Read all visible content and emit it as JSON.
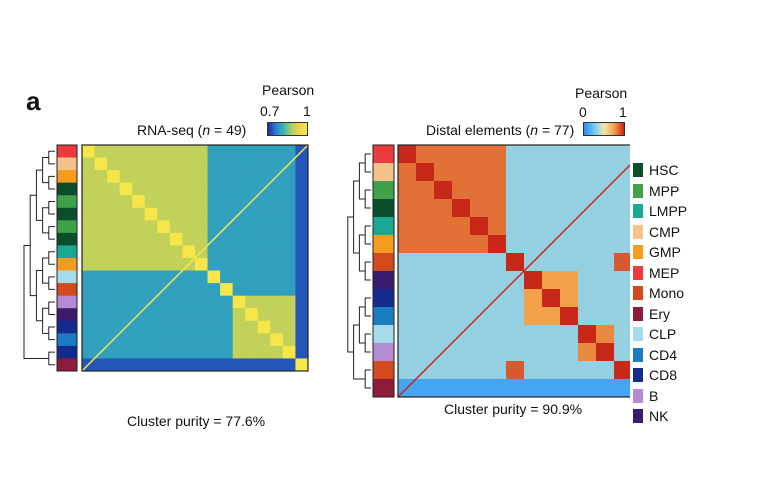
{
  "panel_label": "a",
  "chart_data": [
    {
      "type": "heatmap",
      "title_prefix": "RNA-seq (",
      "title_var": "n",
      "title_suffix": " = 49)",
      "colorbar": {
        "label": "Pearson",
        "min_label": "0.7",
        "max_label": "1",
        "min": 0.7,
        "max": 1
      },
      "footer": "Cluster purity = 77.6%",
      "n_samples": 49,
      "row_annotation": [
        "MEP",
        "CMP",
        "GMP",
        "HSC",
        "MPP",
        "HSC",
        "MPP",
        "HSC",
        "LMPP",
        "GMP",
        "CLP",
        "Mono",
        "B",
        "NK",
        "CD8",
        "CD4",
        "CD8",
        "Ery"
      ],
      "blocks": [
        {
          "cells": [
            "HSC",
            "MPP",
            "LMPP",
            "CMP",
            "GMP",
            "MEP"
          ],
          "value": 0.9
        },
        {
          "cells": [
            "CD4",
            "CD8",
            "NK",
            "B"
          ],
          "value": 0.9
        },
        {
          "cells": [
            "CLP"
          ],
          "value": 0.86
        },
        {
          "cells": [
            "Mono"
          ],
          "value": 0.95
        },
        {
          "cells": [
            "Ery"
          ],
          "value": 0.72
        }
      ]
    },
    {
      "type": "heatmap",
      "title_prefix": "Distal elements (",
      "title_var": "n",
      "title_suffix": " = 77)",
      "colorbar": {
        "label": "Pearson",
        "min_label": "0",
        "max_label": "1",
        "min": 0,
        "max": 1
      },
      "footer": "Cluster purity = 90.9%",
      "n_samples": 77,
      "row_annotation": [
        "MEP",
        "CMP",
        "MPP",
        "HSC",
        "LMPP",
        "GMP",
        "Mono",
        "NK",
        "CD8",
        "CD4",
        "CLP",
        "B",
        "Mono",
        "Ery"
      ],
      "blocks": [
        {
          "cells": [
            "HSC",
            "MPP",
            "LMPP",
            "CMP",
            "GMP",
            "MEP"
          ],
          "value": 0.85
        },
        {
          "cells": [
            "NK",
            "CD8",
            "CD4"
          ],
          "value": 0.75
        },
        {
          "cells": [
            "CLP",
            "B"
          ],
          "value": 0.8
        },
        {
          "cells": [
            "Mono"
          ],
          "value": 0.9
        },
        {
          "cells": [
            "Ery"
          ],
          "value": 0.6
        }
      ]
    }
  ],
  "legend": [
    {
      "label": "HSC",
      "color": "#0b4f2a"
    },
    {
      "label": "MPP",
      "color": "#3fa14a"
    },
    {
      "label": "LMPP",
      "color": "#19a892"
    },
    {
      "label": "CMP",
      "color": "#f5c38a"
    },
    {
      "label": "GMP",
      "color": "#f39c1f"
    },
    {
      "label": "MEP",
      "color": "#ec3b3f"
    },
    {
      "label": "Mono",
      "color": "#d24a1e"
    },
    {
      "label": "Ery",
      "color": "#8e1b3a"
    },
    {
      "label": "CLP",
      "color": "#a6dbe9"
    },
    {
      "label": "CD4",
      "color": "#1a7cc1"
    },
    {
      "label": "CD8",
      "color": "#142a8c"
    },
    {
      "label": "B",
      "color": "#b48ad3"
    },
    {
      "label": "NK",
      "color": "#3a1a6b"
    }
  ]
}
